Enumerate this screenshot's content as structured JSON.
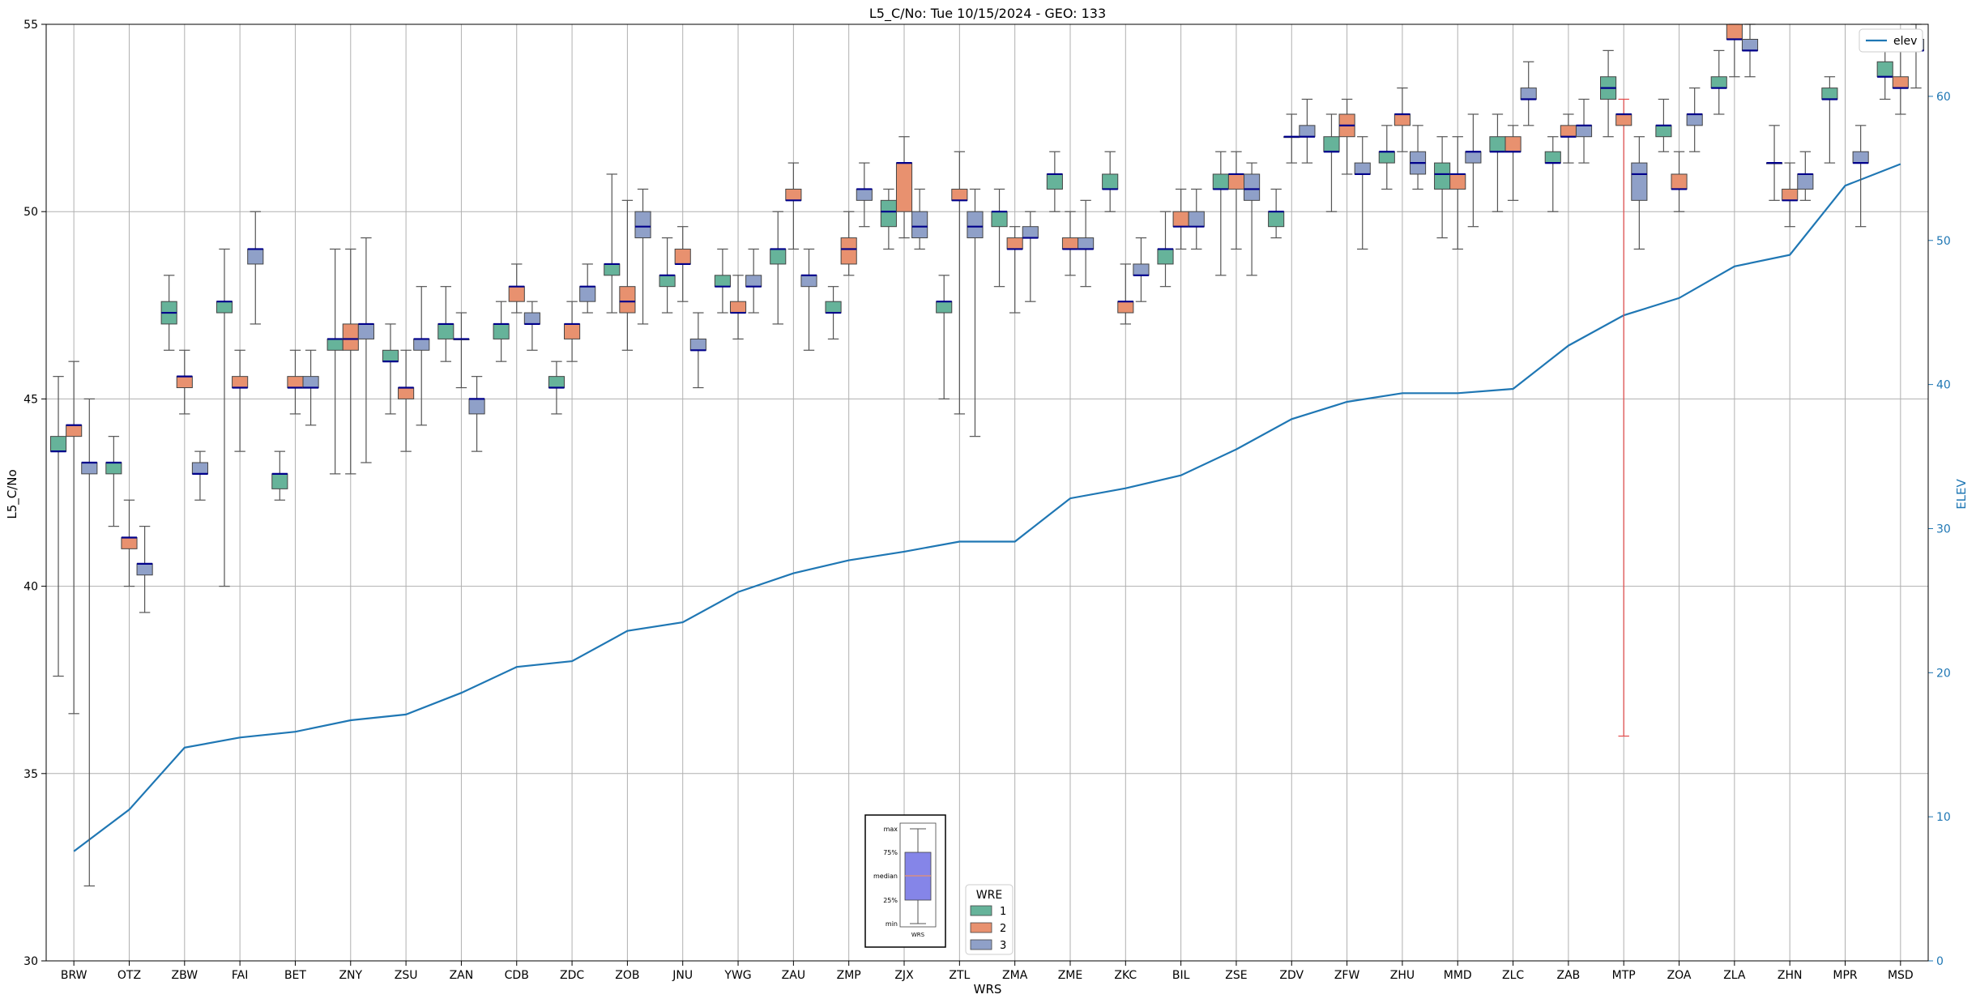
{
  "chart_data": {
    "type": "box",
    "title": "L5_C/No: Tue 10/15/2024 - GEO: 133",
    "xlabel": "WRS",
    "ylabel": "L5_C/No",
    "y2label": "ELEV",
    "ylim": [
      30,
      55
    ],
    "y2lim": [
      0,
      65
    ],
    "yticks": [
      30,
      35,
      40,
      45,
      50,
      55
    ],
    "y2ticks": [
      0,
      10,
      20,
      30,
      40,
      50,
      60
    ],
    "grid": true,
    "categories": [
      "BRW",
      "OTZ",
      "ZBW",
      "FAI",
      "BET",
      "ZNY",
      "ZSU",
      "ZAN",
      "CDB",
      "ZDC",
      "ZOB",
      "JNU",
      "YWG",
      "ZAU",
      "ZMP",
      "ZJX",
      "ZTL",
      "ZMA",
      "ZME",
      "ZKC",
      "BIL",
      "ZSE",
      "ZDV",
      "ZFW",
      "ZHU",
      "MMD",
      "ZLC",
      "ZAB",
      "MTP",
      "ZOA",
      "ZLA",
      "ZHN",
      "MPR",
      "MSD"
    ],
    "colors": {
      "1": "#66b39a",
      "2": "#e8916f",
      "3": "#8fa0c8",
      "median": "#00008b",
      "whisker": "#555555",
      "elev_line": "#1f77b4",
      "grid": "#b0b0b0",
      "mtp_whisker": "#e34a4a"
    },
    "elev_legend": {
      "label": "elev",
      "placement": "top-right"
    },
    "wre_legend": {
      "title": "WRE",
      "labels": [
        "1",
        "2",
        "3"
      ],
      "placement": "bottom-center"
    },
    "key_legend": {
      "labels": [
        "max",
        "75%",
        "median",
        "25%",
        "min"
      ],
      "xlabel": "WRS"
    },
    "elev": [
      7.6,
      10.5,
      14.8,
      15.5,
      15.9,
      16.7,
      17.1,
      18.6,
      20.4,
      20.8,
      22.9,
      23.5,
      25.6,
      26.9,
      27.8,
      28.4,
      29.1,
      29.1,
      32.1,
      32.8,
      33.7,
      35.5,
      37.6,
      38.8,
      39.4,
      39.4,
      39.7,
      42.7,
      44.8,
      46.0,
      48.2,
      49.0,
      53.8,
      55.3
    ],
    "boxes": [
      {
        "wrs": "BRW",
        "wre": 1,
        "min": 37.6,
        "q1": 43.6,
        "median": 43.6,
        "q3": 44.0,
        "max": 45.6
      },
      {
        "wrs": "BRW",
        "wre": 2,
        "min": 36.6,
        "q1": 44.0,
        "median": 44.3,
        "q3": 44.3,
        "max": 46.0
      },
      {
        "wrs": "BRW",
        "wre": 3,
        "min": 32.0,
        "q1": 43.0,
        "median": 43.3,
        "q3": 43.3,
        "max": 45.0
      },
      {
        "wrs": "OTZ",
        "wre": 1,
        "min": 41.6,
        "q1": 43.0,
        "median": 43.3,
        "q3": 43.3,
        "max": 44.0
      },
      {
        "wrs": "OTZ",
        "wre": 2,
        "min": 40.0,
        "q1": 41.0,
        "median": 41.3,
        "q3": 41.3,
        "max": 42.3
      },
      {
        "wrs": "OTZ",
        "wre": 3,
        "min": 39.3,
        "q1": 40.3,
        "median": 40.6,
        "q3": 40.6,
        "max": 41.6
      },
      {
        "wrs": "ZBW",
        "wre": 1,
        "min": 46.3,
        "q1": 47.0,
        "median": 47.3,
        "q3": 47.6,
        "max": 48.3
      },
      {
        "wrs": "ZBW",
        "wre": 2,
        "min": 44.6,
        "q1": 45.3,
        "median": 45.6,
        "q3": 45.6,
        "max": 46.3
      },
      {
        "wrs": "ZBW",
        "wre": 3,
        "min": 42.3,
        "q1": 43.0,
        "median": 43.0,
        "q3": 43.3,
        "max": 43.6
      },
      {
        "wrs": "FAI",
        "wre": 1,
        "min": 40.0,
        "q1": 47.3,
        "median": 47.6,
        "q3": 47.6,
        "max": 49.0
      },
      {
        "wrs": "FAI",
        "wre": 2,
        "min": 43.6,
        "q1": 45.3,
        "median": 45.3,
        "q3": 45.6,
        "max": 46.3
      },
      {
        "wrs": "FAI",
        "wre": 3,
        "min": 47.0,
        "q1": 48.6,
        "median": 49.0,
        "q3": 49.0,
        "max": 50.0
      },
      {
        "wrs": "BET",
        "wre": 1,
        "min": 42.3,
        "q1": 42.6,
        "median": 43.0,
        "q3": 43.0,
        "max": 43.6
      },
      {
        "wrs": "BET",
        "wre": 2,
        "min": 44.6,
        "q1": 45.3,
        "median": 45.3,
        "q3": 45.6,
        "max": 46.3
      },
      {
        "wrs": "BET",
        "wre": 3,
        "min": 44.3,
        "q1": 45.3,
        "median": 45.3,
        "q3": 45.6,
        "max": 46.3
      },
      {
        "wrs": "ZNY",
        "wre": 1,
        "min": 43.0,
        "q1": 46.3,
        "median": 46.6,
        "q3": 46.6,
        "max": 49.0
      },
      {
        "wrs": "ZNY",
        "wre": 2,
        "min": 43.0,
        "q1": 46.3,
        "median": 46.6,
        "q3": 47.0,
        "max": 49.0
      },
      {
        "wrs": "ZNY",
        "wre": 3,
        "min": 43.3,
        "q1": 46.6,
        "median": 47.0,
        "q3": 47.0,
        "max": 49.3
      },
      {
        "wrs": "ZSU",
        "wre": 1,
        "min": 44.6,
        "q1": 46.0,
        "median": 46.0,
        "q3": 46.3,
        "max": 47.0
      },
      {
        "wrs": "ZSU",
        "wre": 2,
        "min": 43.6,
        "q1": 45.0,
        "median": 45.3,
        "q3": 45.3,
        "max": 46.3
      },
      {
        "wrs": "ZSU",
        "wre": 3,
        "min": 44.3,
        "q1": 46.3,
        "median": 46.6,
        "q3": 46.6,
        "max": 48.0
      },
      {
        "wrs": "ZAN",
        "wre": 1,
        "min": 46.0,
        "q1": 46.6,
        "median": 47.0,
        "q3": 47.0,
        "max": 48.0
      },
      {
        "wrs": "ZAN",
        "wre": 2,
        "min": 45.3,
        "q1": 46.6,
        "median": 46.6,
        "q3": 46.6,
        "max": 47.3
      },
      {
        "wrs": "ZAN",
        "wre": 3,
        "min": 43.6,
        "q1": 44.6,
        "median": 45.0,
        "q3": 45.0,
        "max": 45.6
      },
      {
        "wrs": "CDB",
        "wre": 1,
        "min": 46.0,
        "q1": 46.6,
        "median": 47.0,
        "q3": 47.0,
        "max": 47.6
      },
      {
        "wrs": "CDB",
        "wre": 2,
        "min": 47.3,
        "q1": 47.6,
        "median": 48.0,
        "q3": 48.0,
        "max": 48.6
      },
      {
        "wrs": "CDB",
        "wre": 3,
        "min": 46.3,
        "q1": 47.0,
        "median": 47.0,
        "q3": 47.3,
        "max": 47.6
      },
      {
        "wrs": "ZDC",
        "wre": 1,
        "min": 44.6,
        "q1": 45.3,
        "median": 45.3,
        "q3": 45.6,
        "max": 46.0
      },
      {
        "wrs": "ZDC",
        "wre": 2,
        "min": 46.0,
        "q1": 46.6,
        "median": 47.0,
        "q3": 47.0,
        "max": 47.6
      },
      {
        "wrs": "ZDC",
        "wre": 3,
        "min": 47.3,
        "q1": 47.6,
        "median": 48.0,
        "q3": 48.0,
        "max": 48.6
      },
      {
        "wrs": "ZOB",
        "wre": 1,
        "min": 47.3,
        "q1": 48.3,
        "median": 48.6,
        "q3": 48.6,
        "max": 51.0
      },
      {
        "wrs": "ZOB",
        "wre": 2,
        "min": 46.3,
        "q1": 47.3,
        "median": 47.6,
        "q3": 48.0,
        "max": 50.3
      },
      {
        "wrs": "ZOB",
        "wre": 3,
        "min": 47.0,
        "q1": 49.3,
        "median": 49.6,
        "q3": 50.0,
        "max": 50.6
      },
      {
        "wrs": "JNU",
        "wre": 1,
        "min": 47.3,
        "q1": 48.0,
        "median": 48.3,
        "q3": 48.3,
        "max": 49.3
      },
      {
        "wrs": "JNU",
        "wre": 2,
        "min": 47.6,
        "q1": 48.6,
        "median": 48.6,
        "q3": 49.0,
        "max": 49.6
      },
      {
        "wrs": "JNU",
        "wre": 3,
        "min": 45.3,
        "q1": 46.3,
        "median": 46.3,
        "q3": 46.6,
        "max": 47.3
      },
      {
        "wrs": "YWG",
        "wre": 1,
        "min": 47.3,
        "q1": 48.0,
        "median": 48.0,
        "q3": 48.3,
        "max": 49.0
      },
      {
        "wrs": "YWG",
        "wre": 2,
        "min": 46.6,
        "q1": 47.3,
        "median": 47.3,
        "q3": 47.6,
        "max": 48.3
      },
      {
        "wrs": "YWG",
        "wre": 3,
        "min": 47.3,
        "q1": 48.0,
        "median": 48.0,
        "q3": 48.3,
        "max": 49.0
      },
      {
        "wrs": "ZAU",
        "wre": 1,
        "min": 47.0,
        "q1": 48.6,
        "median": 49.0,
        "q3": 49.0,
        "max": 50.0
      },
      {
        "wrs": "ZAU",
        "wre": 2,
        "min": 49.0,
        "q1": 50.3,
        "median": 50.3,
        "q3": 50.6,
        "max": 51.3
      },
      {
        "wrs": "ZAU",
        "wre": 3,
        "min": 46.3,
        "q1": 48.0,
        "median": 48.3,
        "q3": 48.3,
        "max": 49.0
      },
      {
        "wrs": "ZMP",
        "wre": 1,
        "min": 46.6,
        "q1": 47.3,
        "median": 47.3,
        "q3": 47.6,
        "max": 48.0
      },
      {
        "wrs": "ZMP",
        "wre": 2,
        "min": 48.3,
        "q1": 48.6,
        "median": 49.0,
        "q3": 49.3,
        "max": 50.0
      },
      {
        "wrs": "ZMP",
        "wre": 3,
        "min": 49.6,
        "q1": 50.3,
        "median": 50.6,
        "q3": 50.6,
        "max": 51.3
      },
      {
        "wrs": "ZJX",
        "wre": 1,
        "min": 49.0,
        "q1": 49.6,
        "median": 50.0,
        "q3": 50.3,
        "max": 50.6
      },
      {
        "wrs": "ZJX",
        "wre": 2,
        "min": 49.3,
        "q1": 50.0,
        "median": 51.3,
        "q3": 51.3,
        "max": 52.0
      },
      {
        "wrs": "ZJX",
        "wre": 3,
        "min": 49.0,
        "q1": 49.3,
        "median": 49.6,
        "q3": 50.0,
        "max": 50.6
      },
      {
        "wrs": "ZTL",
        "wre": 1,
        "min": 45.0,
        "q1": 47.3,
        "median": 47.6,
        "q3": 47.6,
        "max": 48.3
      },
      {
        "wrs": "ZTL",
        "wre": 2,
        "min": 44.6,
        "q1": 50.3,
        "median": 50.3,
        "q3": 50.6,
        "max": 51.6
      },
      {
        "wrs": "ZTL",
        "wre": 3,
        "min": 44.0,
        "q1": 49.3,
        "median": 49.6,
        "q3": 50.0,
        "max": 50.6
      },
      {
        "wrs": "ZMA",
        "wre": 1,
        "min": 48.0,
        "q1": 49.6,
        "median": 50.0,
        "q3": 50.0,
        "max": 50.6
      },
      {
        "wrs": "ZMA",
        "wre": 2,
        "min": 47.3,
        "q1": 49.0,
        "median": 49.0,
        "q3": 49.3,
        "max": 49.6
      },
      {
        "wrs": "ZMA",
        "wre": 3,
        "min": 47.6,
        "q1": 49.3,
        "median": 49.3,
        "q3": 49.6,
        "max": 50.0
      },
      {
        "wrs": "ZME",
        "wre": 1,
        "min": 50.0,
        "q1": 50.6,
        "median": 51.0,
        "q3": 51.0,
        "max": 51.6
      },
      {
        "wrs": "ZME",
        "wre": 2,
        "min": 48.3,
        "q1": 49.0,
        "median": 49.0,
        "q3": 49.3,
        "max": 50.0
      },
      {
        "wrs": "ZME",
        "wre": 3,
        "min": 48.0,
        "q1": 49.0,
        "median": 49.0,
        "q3": 49.3,
        "max": 50.3
      },
      {
        "wrs": "ZKC",
        "wre": 1,
        "min": 50.0,
        "q1": 50.6,
        "median": 50.6,
        "q3": 51.0,
        "max": 51.6
      },
      {
        "wrs": "ZKC",
        "wre": 2,
        "min": 47.0,
        "q1": 47.3,
        "median": 47.6,
        "q3": 47.6,
        "max": 48.6
      },
      {
        "wrs": "ZKC",
        "wre": 3,
        "min": 47.6,
        "q1": 48.3,
        "median": 48.3,
        "q3": 48.6,
        "max": 49.3
      },
      {
        "wrs": "BIL",
        "wre": 1,
        "min": 48.0,
        "q1": 48.6,
        "median": 49.0,
        "q3": 49.0,
        "max": 50.0
      },
      {
        "wrs": "BIL",
        "wre": 2,
        "min": 49.0,
        "q1": 49.6,
        "median": 49.6,
        "q3": 50.0,
        "max": 50.6
      },
      {
        "wrs": "BIL",
        "wre": 3,
        "min": 49.0,
        "q1": 49.6,
        "median": 49.6,
        "q3": 50.0,
        "max": 50.6
      },
      {
        "wrs": "ZSE",
        "wre": 1,
        "min": 48.3,
        "q1": 50.6,
        "median": 50.6,
        "q3": 51.0,
        "max": 51.6
      },
      {
        "wrs": "ZSE",
        "wre": 2,
        "min": 49.0,
        "q1": 50.6,
        "median": 51.0,
        "q3": 51.0,
        "max": 51.6
      },
      {
        "wrs": "ZSE",
        "wre": 3,
        "min": 48.3,
        "q1": 50.3,
        "median": 50.6,
        "q3": 51.0,
        "max": 51.3
      },
      {
        "wrs": "ZDV",
        "wre": 1,
        "min": 49.3,
        "q1": 49.6,
        "median": 50.0,
        "q3": 50.0,
        "max": 50.6
      },
      {
        "wrs": "ZDV",
        "wre": 2,
        "min": 51.3,
        "q1": 52.0,
        "median": 52.0,
        "q3": 52.0,
        "max": 52.6
      },
      {
        "wrs": "ZDV",
        "wre": 3,
        "min": 51.3,
        "q1": 52.0,
        "median": 52.0,
        "q3": 52.3,
        "max": 53.0
      },
      {
        "wrs": "ZFW",
        "wre": 1,
        "min": 50.0,
        "q1": 51.6,
        "median": 51.6,
        "q3": 52.0,
        "max": 52.6
      },
      {
        "wrs": "ZFW",
        "wre": 2,
        "min": 51.0,
        "q1": 52.0,
        "median": 52.3,
        "q3": 52.6,
        "max": 53.0
      },
      {
        "wrs": "ZFW",
        "wre": 3,
        "min": 49.0,
        "q1": 51.0,
        "median": 51.0,
        "q3": 51.3,
        "max": 52.0
      },
      {
        "wrs": "ZHU",
        "wre": 1,
        "min": 50.6,
        "q1": 51.3,
        "median": 51.6,
        "q3": 51.6,
        "max": 52.3
      },
      {
        "wrs": "ZHU",
        "wre": 2,
        "min": 51.6,
        "q1": 52.3,
        "median": 52.6,
        "q3": 52.6,
        "max": 53.3
      },
      {
        "wrs": "ZHU",
        "wre": 3,
        "min": 50.6,
        "q1": 51.0,
        "median": 51.3,
        "q3": 51.6,
        "max": 52.3
      },
      {
        "wrs": "MMD",
        "wre": 1,
        "min": 49.3,
        "q1": 50.6,
        "median": 51.0,
        "q3": 51.3,
        "max": 52.0
      },
      {
        "wrs": "MMD",
        "wre": 2,
        "min": 49.0,
        "q1": 50.6,
        "median": 51.0,
        "q3": 51.0,
        "max": 52.0
      },
      {
        "wrs": "MMD",
        "wre": 3,
        "min": 49.6,
        "q1": 51.3,
        "median": 51.6,
        "q3": 51.6,
        "max": 52.6
      },
      {
        "wrs": "ZLC",
        "wre": 1,
        "min": 50.0,
        "q1": 51.6,
        "median": 51.6,
        "q3": 52.0,
        "max": 52.6
      },
      {
        "wrs": "ZLC",
        "wre": 2,
        "min": 50.3,
        "q1": 51.6,
        "median": 51.6,
        "q3": 52.0,
        "max": 52.3
      },
      {
        "wrs": "ZLC",
        "wre": 3,
        "min": 52.3,
        "q1": 53.0,
        "median": 53.0,
        "q3": 53.3,
        "max": 54.0
      },
      {
        "wrs": "ZAB",
        "wre": 1,
        "min": 50.0,
        "q1": 51.3,
        "median": 51.3,
        "q3": 51.6,
        "max": 52.0
      },
      {
        "wrs": "ZAB",
        "wre": 2,
        "min": 51.3,
        "q1": 52.0,
        "median": 52.0,
        "q3": 52.3,
        "max": 52.6
      },
      {
        "wrs": "ZAB",
        "wre": 3,
        "min": 51.3,
        "q1": 52.0,
        "median": 52.3,
        "q3": 52.3,
        "max": 53.0
      },
      {
        "wrs": "MTP",
        "wre": 1,
        "min": 52.0,
        "q1": 53.0,
        "median": 53.3,
        "q3": 53.6,
        "max": 54.3
      },
      {
        "wrs": "MTP",
        "wre": 2,
        "min": 36.0,
        "q1": 52.3,
        "median": 52.6,
        "q3": 52.6,
        "max": 53.0
      },
      {
        "wrs": "MTP",
        "wre": 3,
        "min": 49.0,
        "q1": 50.3,
        "median": 51.0,
        "q3": 51.3,
        "max": 52.0
      },
      {
        "wrs": "ZOA",
        "wre": 1,
        "min": 51.6,
        "q1": 52.0,
        "median": 52.3,
        "q3": 52.3,
        "max": 53.0
      },
      {
        "wrs": "ZOA",
        "wre": 2,
        "min": 50.0,
        "q1": 50.6,
        "median": 50.6,
        "q3": 51.0,
        "max": 51.6
      },
      {
        "wrs": "ZOA",
        "wre": 3,
        "min": 51.6,
        "q1": 52.3,
        "median": 52.6,
        "q3": 52.6,
        "max": 53.3
      },
      {
        "wrs": "ZLA",
        "wre": 1,
        "min": 52.6,
        "q1": 53.3,
        "median": 53.3,
        "q3": 53.6,
        "max": 54.3
      },
      {
        "wrs": "ZLA",
        "wre": 2,
        "min": 53.6,
        "q1": 54.6,
        "median": 54.6,
        "q3": 55.0,
        "max": 55.0
      },
      {
        "wrs": "ZLA",
        "wre": 3,
        "min": 53.6,
        "q1": 54.3,
        "median": 54.3,
        "q3": 54.6,
        "max": 55.0
      },
      {
        "wrs": "ZHN",
        "wre": 1,
        "min": 50.3,
        "q1": 51.3,
        "median": 51.3,
        "q3": 51.3,
        "max": 52.3
      },
      {
        "wrs": "ZHN",
        "wre": 2,
        "min": 49.6,
        "q1": 50.3,
        "median": 50.3,
        "q3": 50.6,
        "max": 51.3
      },
      {
        "wrs": "ZHN",
        "wre": 3,
        "min": 50.3,
        "q1": 50.6,
        "median": 51.0,
        "q3": 51.0,
        "max": 51.6
      },
      {
        "wrs": "MPR",
        "wre": 1,
        "min": 51.3,
        "q1": 53.0,
        "median": 53.0,
        "q3": 53.3,
        "max": 53.6
      },
      {
        "wrs": "MPR",
        "wre": 2,
        "min": null,
        "q1": null,
        "median": null,
        "q3": null,
        "max": null
      },
      {
        "wrs": "MPR",
        "wre": 3,
        "min": 49.6,
        "q1": 51.3,
        "median": 51.3,
        "q3": 51.6,
        "max": 52.3
      },
      {
        "wrs": "MSD",
        "wre": 1,
        "min": 53.0,
        "q1": 53.6,
        "median": 53.6,
        "q3": 54.0,
        "max": 54.6
      },
      {
        "wrs": "MSD",
        "wre": 2,
        "min": 52.6,
        "q1": 53.3,
        "median": 53.3,
        "q3": 53.6,
        "max": 54.3
      },
      {
        "wrs": "MSD",
        "wre": 3,
        "min": 53.3,
        "q1": 54.3,
        "median": 54.3,
        "q3": 54.6,
        "max": 55.0
      }
    ]
  }
}
